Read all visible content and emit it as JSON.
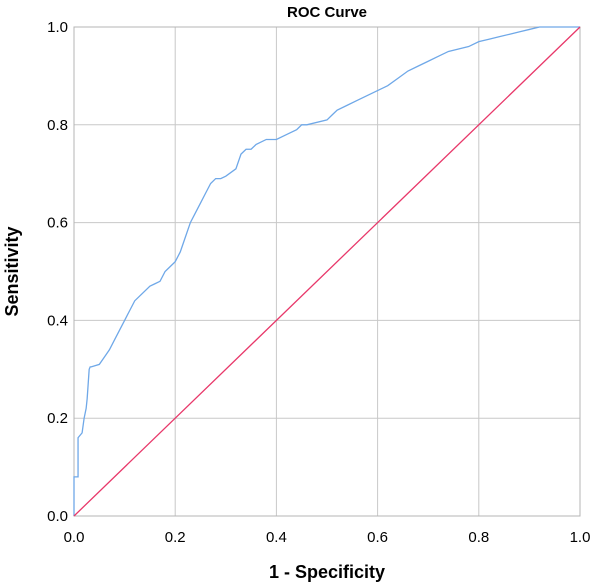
{
  "chart_data": {
    "type": "line",
    "title": "ROC Curve",
    "xlabel": "1 - Specificity",
    "ylabel": "Sensitivity",
    "xlim": [
      0,
      1
    ],
    "ylim": [
      0,
      1
    ],
    "x_ticks": [
      "0.0",
      "0.2",
      "0.4",
      "0.6",
      "0.8",
      "1.0"
    ],
    "y_ticks": [
      "0.0",
      "0.2",
      "0.4",
      "0.6",
      "0.8",
      "1.0"
    ],
    "grid": true,
    "legend": "none",
    "colors": {
      "roc_curve": "#6fa8e8",
      "reference_line": "#e8386a",
      "grid": "#c8c8c8",
      "plot_border": "#b4b4b4"
    },
    "series": [
      {
        "role": "roc_curve",
        "x": [
          0.0,
          0.0,
          0.008,
          0.008,
          0.016,
          0.02,
          0.024,
          0.026,
          0.03,
          0.032,
          0.034,
          0.05,
          0.06,
          0.07,
          0.08,
          0.09,
          0.1,
          0.11,
          0.12,
          0.13,
          0.14,
          0.15,
          0.16,
          0.17,
          0.18,
          0.19,
          0.2,
          0.21,
          0.22,
          0.23,
          0.24,
          0.25,
          0.26,
          0.27,
          0.28,
          0.29,
          0.3,
          0.32,
          0.33,
          0.34,
          0.35,
          0.36,
          0.38,
          0.4,
          0.42,
          0.44,
          0.45,
          0.46,
          0.5,
          0.51,
          0.52,
          0.54,
          0.56,
          0.58,
          0.6,
          0.62,
          0.64,
          0.66,
          0.68,
          0.7,
          0.72,
          0.74,
          0.76,
          0.78,
          0.8,
          0.82,
          0.84,
          0.86,
          0.88,
          0.9,
          0.92,
          0.94,
          1.0
        ],
        "y": [
          0.0,
          0.08,
          0.08,
          0.16,
          0.17,
          0.2,
          0.22,
          0.24,
          0.3,
          0.305,
          0.305,
          0.31,
          0.325,
          0.34,
          0.36,
          0.38,
          0.4,
          0.42,
          0.44,
          0.45,
          0.46,
          0.47,
          0.475,
          0.48,
          0.5,
          0.51,
          0.52,
          0.54,
          0.57,
          0.6,
          0.62,
          0.64,
          0.66,
          0.68,
          0.69,
          0.69,
          0.695,
          0.71,
          0.74,
          0.75,
          0.75,
          0.76,
          0.77,
          0.77,
          0.78,
          0.79,
          0.8,
          0.8,
          0.81,
          0.82,
          0.83,
          0.84,
          0.85,
          0.86,
          0.87,
          0.88,
          0.895,
          0.91,
          0.92,
          0.93,
          0.94,
          0.95,
          0.955,
          0.96,
          0.97,
          0.975,
          0.98,
          0.985,
          0.99,
          0.995,
          1.0,
          1.0,
          1.0
        ]
      },
      {
        "role": "reference_line",
        "x": [
          0,
          1
        ],
        "y": [
          0,
          1
        ]
      }
    ]
  }
}
